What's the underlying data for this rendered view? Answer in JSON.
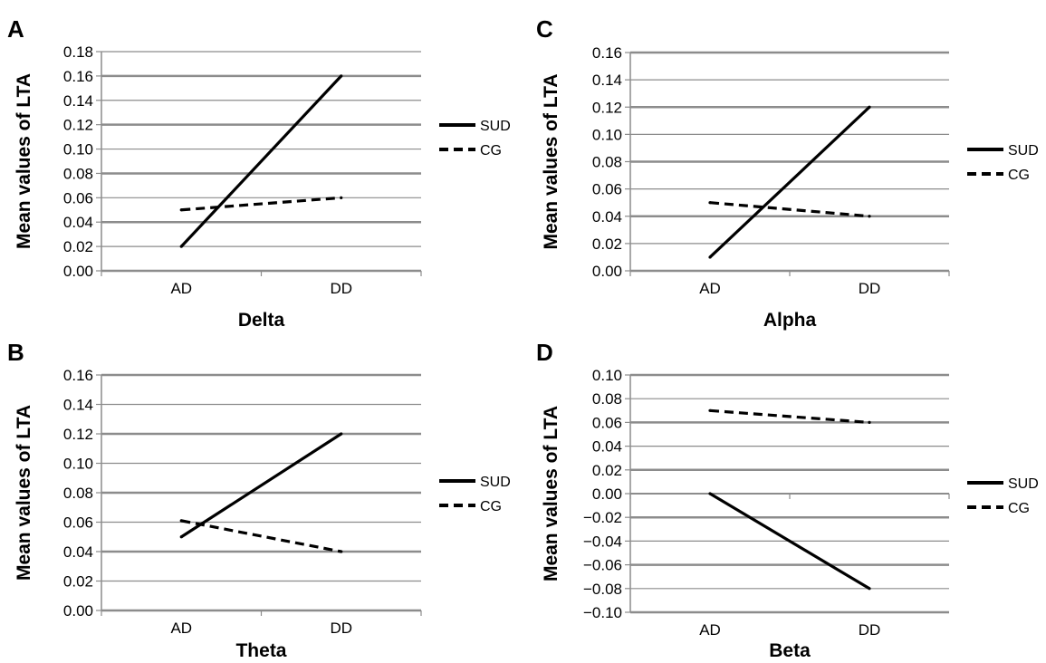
{
  "chart_data": [
    {
      "panel": "A",
      "type": "line",
      "categories": [
        "AD",
        "DD"
      ],
      "xlabel": "Delta",
      "ylabel": "Mean values of LTA",
      "ylim": [
        0,
        0.18
      ],
      "ytick_labels": [
        "0.00",
        "0.02",
        "0.04",
        "0.06",
        "0.08",
        "0.10",
        "0.12",
        "0.14",
        "0.16",
        "0.18"
      ],
      "series": [
        {
          "name": "SUD",
          "values": [
            0.02,
            0.16
          ],
          "style": "solid"
        },
        {
          "name": "CG",
          "values": [
            0.05,
            0.06
          ],
          "style": "dashed"
        }
      ],
      "grid": true,
      "legend": "right"
    },
    {
      "panel": "B",
      "type": "line",
      "categories": [
        "AD",
        "DD"
      ],
      "xlabel": "Theta",
      "ylabel": "Mean values of LTA",
      "ylim": [
        0,
        0.16
      ],
      "ytick_labels": [
        "0.00",
        "0.02",
        "0.04",
        "0.06",
        "0.08",
        "0.10",
        "0.12",
        "0.14",
        "0.16"
      ],
      "series": [
        {
          "name": "SUD",
          "values": [
            0.05,
            0.12
          ],
          "style": "solid"
        },
        {
          "name": "CG",
          "values": [
            0.061,
            0.04
          ],
          "style": "dashed"
        }
      ],
      "grid": true,
      "legend": "right"
    },
    {
      "panel": "C",
      "type": "line",
      "categories": [
        "AD",
        "DD"
      ],
      "xlabel": "Alpha",
      "ylabel": "Mean values of LTA",
      "ylim": [
        0,
        0.16
      ],
      "ytick_labels": [
        "0.00",
        "0.02",
        "0.04",
        "0.06",
        "0.08",
        "0.10",
        "0.12",
        "0.14",
        "0.16"
      ],
      "series": [
        {
          "name": "SUD",
          "values": [
            0.01,
            0.12
          ],
          "style": "solid"
        },
        {
          "name": "CG",
          "values": [
            0.05,
            0.04
          ],
          "style": "dashed"
        }
      ],
      "grid": true,
      "legend": "right"
    },
    {
      "panel": "D",
      "type": "line",
      "categories": [
        "AD",
        "DD"
      ],
      "xlabel": "Beta",
      "ylabel": "Mean values of LTA",
      "ylim": [
        -0.1,
        0.1
      ],
      "ytick_labels": [
        "−0.10",
        "−0.08",
        "−0.06",
        "−0.04",
        "−0.02",
        "0.00",
        "0.02",
        "0.04",
        "0.06",
        "0.08",
        "0.10"
      ],
      "series": [
        {
          "name": "SUD",
          "values": [
            0.0,
            -0.08
          ],
          "style": "solid"
        },
        {
          "name": "CG",
          "values": [
            0.07,
            0.06
          ],
          "style": "dashed"
        }
      ],
      "grid": true,
      "legend": "right"
    }
  ],
  "colors": {
    "line": "#000000",
    "grid": "#8c8c8c",
    "axis": "#8c8c8c"
  }
}
